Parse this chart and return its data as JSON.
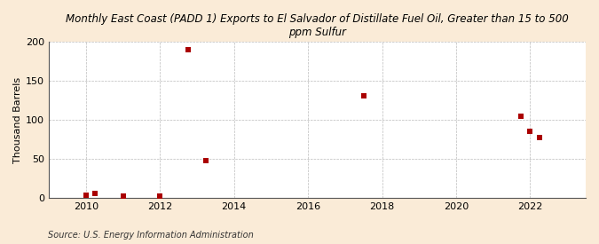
{
  "title": "Monthly East Coast (PADD 1) Exports to El Salvador of Distillate Fuel Oil, Greater than 15 to 500\nppm Sulfur",
  "ylabel": "Thousand Barrels",
  "source_text": "Source: U.S. Energy Information Administration",
  "background_color": "#faebd7",
  "plot_bg_color": "#ffffff",
  "marker_color": "#aa0000",
  "marker_size": 16,
  "xlim": [
    2009.0,
    2023.5
  ],
  "ylim": [
    0,
    200
  ],
  "yticks": [
    0,
    50,
    100,
    150,
    200
  ],
  "xticks": [
    2010,
    2012,
    2014,
    2016,
    2018,
    2020,
    2022
  ],
  "data_x": [
    2010.0,
    2010.25,
    2011.0,
    2012.0,
    2012.75,
    2013.25,
    2017.5,
    2021.75,
    2022.0,
    2022.25
  ],
  "data_y": [
    4,
    6,
    2,
    2,
    190,
    48,
    131,
    105,
    85,
    77
  ]
}
